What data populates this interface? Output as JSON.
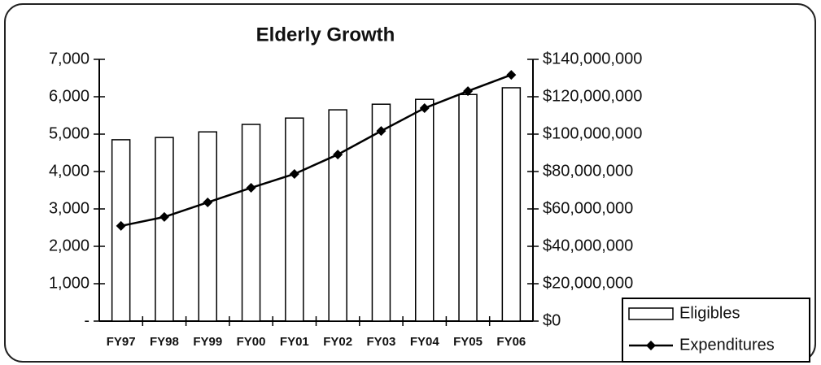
{
  "chart_data": {
    "type": "bar-line",
    "title": "Elderly Growth",
    "categories": [
      "FY97",
      "FY98",
      "FY99",
      "FY00",
      "FY01",
      "FY02",
      "FY03",
      "FY04",
      "FY05",
      "FY06"
    ],
    "series": [
      {
        "name": "Eligibles",
        "type": "bar",
        "color": "#ffffff",
        "values": [
          4850,
          4910,
          5060,
          5260,
          5430,
          5650,
          5800,
          5930,
          6060,
          6240
        ]
      },
      {
        "name": "Expenditures",
        "type": "line",
        "axis": "y2",
        "color": "#000000",
        "values": [
          50900000,
          55700000,
          63500000,
          71300000,
          78700000,
          89100000,
          101700000,
          113900000,
          123000000,
          131700000
        ]
      }
    ],
    "ylim": [
      0,
      7000
    ],
    "yticks": [
      {
        "value": 0,
        "label": "-"
      },
      {
        "value": 1000,
        "label": "1,000"
      },
      {
        "value": 2000,
        "label": "2,000"
      },
      {
        "value": 3000,
        "label": "3,000"
      },
      {
        "value": 4000,
        "label": "4,000"
      },
      {
        "value": 5000,
        "label": "5,000"
      },
      {
        "value": 6000,
        "label": "6,000"
      },
      {
        "value": 7000,
        "label": "7,000"
      }
    ],
    "y2lim": [
      0,
      140000000
    ],
    "y2ticks": [
      {
        "value": 0,
        "label": "$0"
      },
      {
        "value": 20000000,
        "label": "$20,000,000"
      },
      {
        "value": 40000000,
        "label": "$40,000,000"
      },
      {
        "value": 60000000,
        "label": "$60,000,000"
      },
      {
        "value": 80000000,
        "label": "$80,000,000"
      },
      {
        "value": 100000000,
        "label": "$100,000,000"
      },
      {
        "value": 120000000,
        "label": "$120,000,000"
      },
      {
        "value": 140000000,
        "label": "$140,000,000"
      }
    ],
    "grid": false,
    "legend": "lower right"
  }
}
